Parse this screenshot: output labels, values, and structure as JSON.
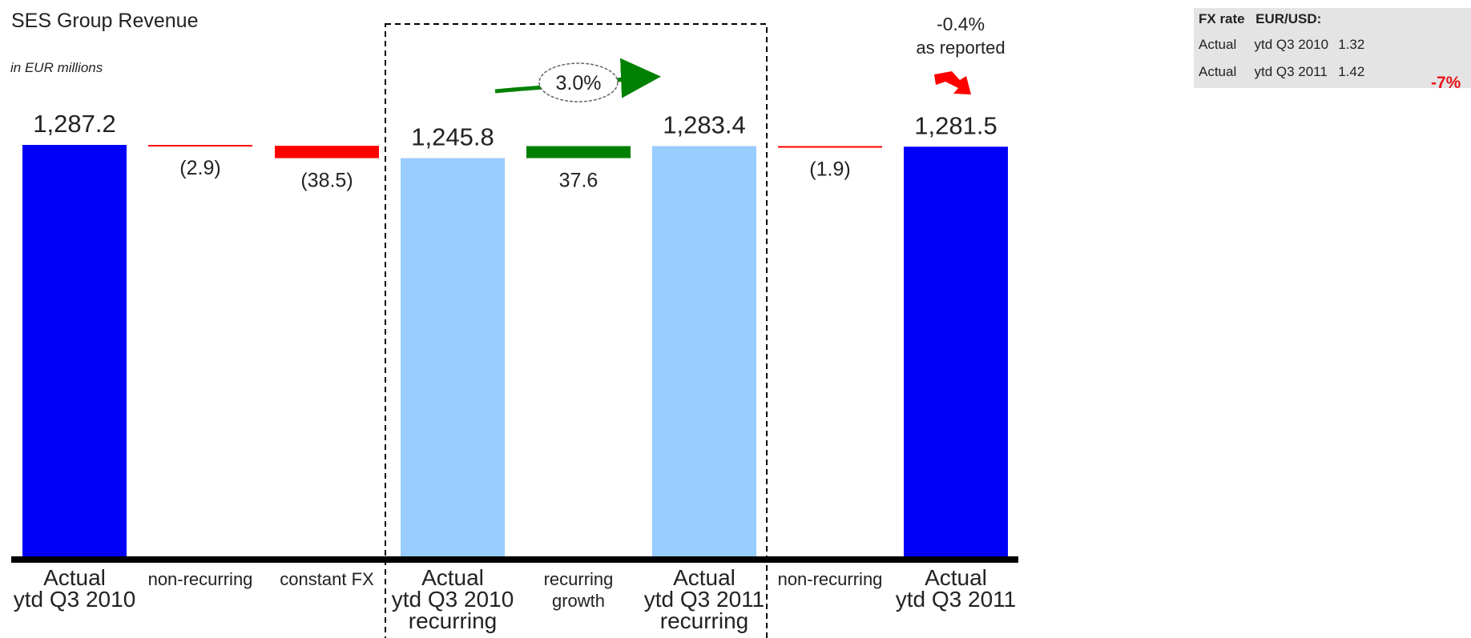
{
  "title": "SES Group Revenue",
  "subtitle": "in EUR millions",
  "fx_box": {
    "header_1": "FX rate",
    "header_2": "EUR/USD:",
    "rows": [
      {
        "label": "Actual",
        "period": "ytd Q3 2010",
        "rate": "1.32"
      },
      {
        "label": "Actual",
        "period": "ytd Q3 2011",
        "rate": "1.42"
      }
    ],
    "change": "-7%"
  },
  "annotations": {
    "growth_pct": "3.0%",
    "reported_pct": "-0.4%",
    "reported_label": "as reported"
  },
  "colors": {
    "total": "#0000f7",
    "recurring_total": "#99ccff",
    "decrease": "#ff0000",
    "increase": "#008000",
    "axis": "#000000",
    "fx_negative": "#e8141b"
  },
  "chart_data": {
    "type": "bar",
    "subtype": "waterfall",
    "ylim": [
      0,
      1287.2
    ],
    "categories": [
      [
        "Actual",
        "ytd Q3 2010"
      ],
      [
        "non-recurring"
      ],
      [
        "constant FX"
      ],
      [
        "Actual",
        "ytd Q3 2010",
        "recurring"
      ],
      [
        "recurring",
        "growth"
      ],
      [
        "Actual",
        "ytd Q3 2011",
        "recurring"
      ],
      [
        "non-recurring"
      ],
      [
        "Actual",
        "ytd Q3 2011"
      ]
    ],
    "bars": [
      {
        "kind": "total",
        "start": 0,
        "end": 1287.2,
        "label": "1,287.2"
      },
      {
        "kind": "delta",
        "start": 1287.2,
        "end": 1284.3,
        "label": "(2.9)"
      },
      {
        "kind": "delta",
        "start": 1284.3,
        "end": 1245.8,
        "label": "(38.5)"
      },
      {
        "kind": "recurring",
        "start": 0,
        "end": 1245.8,
        "label": "1,245.8"
      },
      {
        "kind": "delta",
        "start": 1245.8,
        "end": 1283.4,
        "label": "37.6"
      },
      {
        "kind": "recurring",
        "start": 0,
        "end": 1283.4,
        "label": "1,283.4"
      },
      {
        "kind": "delta",
        "start": 1283.4,
        "end": 1281.5,
        "label": "(1.9)"
      },
      {
        "kind": "total",
        "start": 0,
        "end": 1281.5,
        "label": "1,281.5"
      }
    ]
  }
}
